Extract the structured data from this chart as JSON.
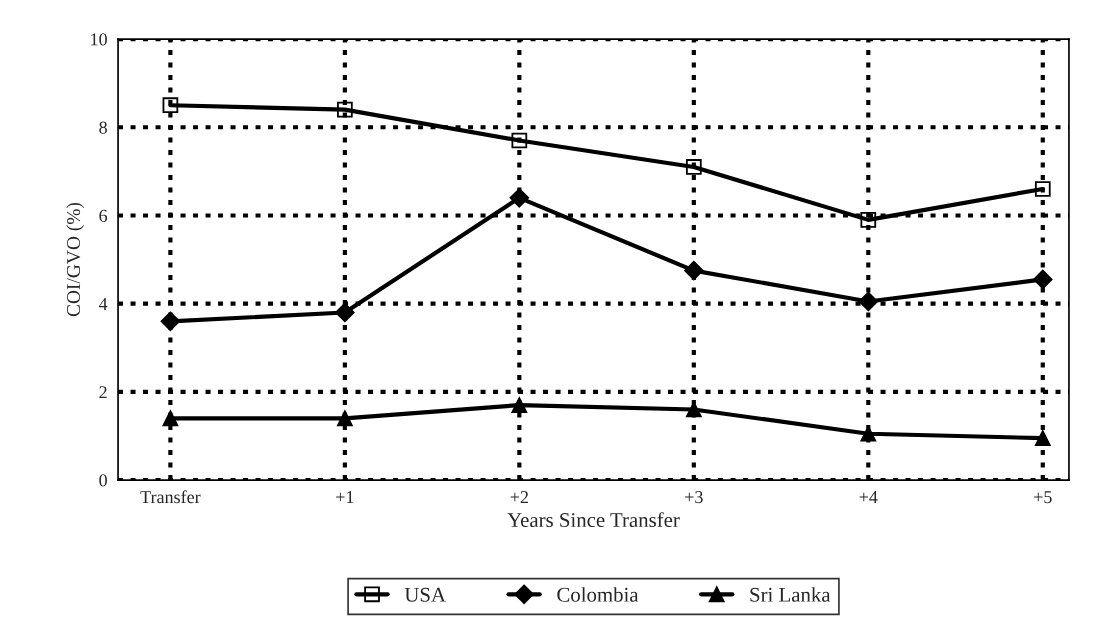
{
  "chart_data": {
    "type": "line",
    "xlabel": "Years Since Transfer",
    "ylabel": "COI/GVO (%)",
    "categories": [
      "Transfer",
      "+1",
      "+2",
      "+3",
      "+4",
      "+5"
    ],
    "series": [
      {
        "name": "USA",
        "color": "#000000",
        "marker": "square",
        "values": [
          8.5,
          8.4,
          7.7,
          7.1,
          5.9,
          6.6
        ]
      },
      {
        "name": "Colombia",
        "color": "#000000",
        "marker": "diamond",
        "values": [
          3.6,
          3.8,
          6.4,
          4.75,
          4.05,
          4.55
        ]
      },
      {
        "name": "Sri Lanka",
        "color": "#000000",
        "marker": "triangle",
        "values": [
          1.4,
          1.4,
          1.7,
          1.6,
          1.05,
          0.95
        ]
      }
    ],
    "ylim": [
      0,
      10
    ],
    "yticks": [
      0,
      2,
      4,
      6,
      8,
      10
    ],
    "grid": true,
    "legend": "bottom",
    "line_style": "solid"
  }
}
